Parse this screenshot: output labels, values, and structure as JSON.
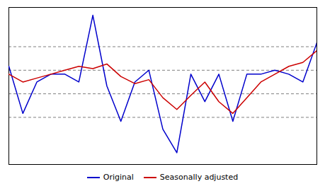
{
  "chart_data": {
    "type": "line",
    "x": [
      0,
      1,
      2,
      3,
      4,
      5,
      6,
      7,
      8,
      9,
      10,
      11,
      12,
      13,
      14,
      15,
      16,
      17,
      18,
      19,
      20,
      21,
      22
    ],
    "series": [
      {
        "name": "Original",
        "color": "#0000cc",
        "values": [
          2.5,
          -3.5,
          0.5,
          1.5,
          1.5,
          0.5,
          9.0,
          0.0,
          -4.5,
          0.5,
          2.0,
          -5.5,
          -8.5,
          1.5,
          -2.0,
          1.5,
          -4.5,
          1.5,
          1.5,
          2.0,
          1.5,
          0.5,
          5.5
        ]
      },
      {
        "name": "Seasonally adjusted",
        "color": "#cc0000",
        "values": [
          1.5,
          0.5,
          1.0,
          1.5,
          2.0,
          2.5,
          2.2,
          2.8,
          1.2,
          0.3,
          0.8,
          -1.5,
          -3.0,
          -1.2,
          0.5,
          -2.0,
          -3.5,
          -1.5,
          0.5,
          1.5,
          2.5,
          3.0,
          4.5
        ]
      }
    ],
    "xlim": [
      0,
      22
    ],
    "ylim": [
      -10,
      10
    ],
    "yticks": [
      -4,
      -1,
      2,
      5
    ],
    "grid": true,
    "tick_labels": false,
    "legend": "bottom"
  }
}
